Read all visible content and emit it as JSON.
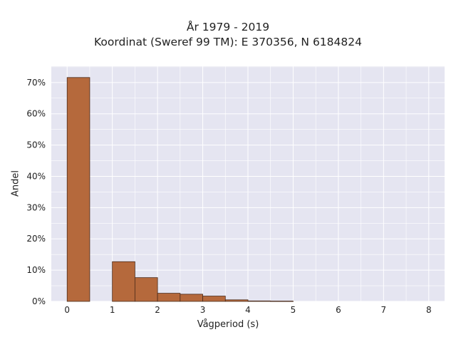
{
  "chart_data": {
    "type": "bar",
    "title_lines": [
      "År 1979 - 2019",
      "Koordinat (Sweref 99 TM): E 370356, N 6184824"
    ],
    "xlabel": "Vågperiod (s)",
    "ylabel": "Andel",
    "bin_width": 0.5,
    "bins": [
      {
        "x_start": 0.0,
        "value": 71.6
      },
      {
        "x_start": 0.5,
        "value": 0.0
      },
      {
        "x_start": 1.0,
        "value": 12.7
      },
      {
        "x_start": 1.5,
        "value": 7.6
      },
      {
        "x_start": 2.0,
        "value": 2.6
      },
      {
        "x_start": 2.5,
        "value": 2.3
      },
      {
        "x_start": 3.0,
        "value": 1.7
      },
      {
        "x_start": 3.5,
        "value": 0.5
      },
      {
        "x_start": 4.0,
        "value": 0.15
      },
      {
        "x_start": 4.5,
        "value": 0.1
      }
    ],
    "x_ticks": [
      "0",
      "1",
      "2",
      "3",
      "4",
      "5",
      "6",
      "7",
      "8"
    ],
    "y_ticks": [
      "0%",
      "10%",
      "20%",
      "30%",
      "40%",
      "50%",
      "60%",
      "70%"
    ],
    "xlim": [
      -0.35,
      8.35
    ],
    "ylim": [
      0,
      75.2
    ],
    "grid": true,
    "colors": {
      "plot_bg": "#e5e5f1",
      "grid": "#ffffff",
      "bar_fill": "#b5693c",
      "bar_edge": "#4a2a1a"
    }
  }
}
